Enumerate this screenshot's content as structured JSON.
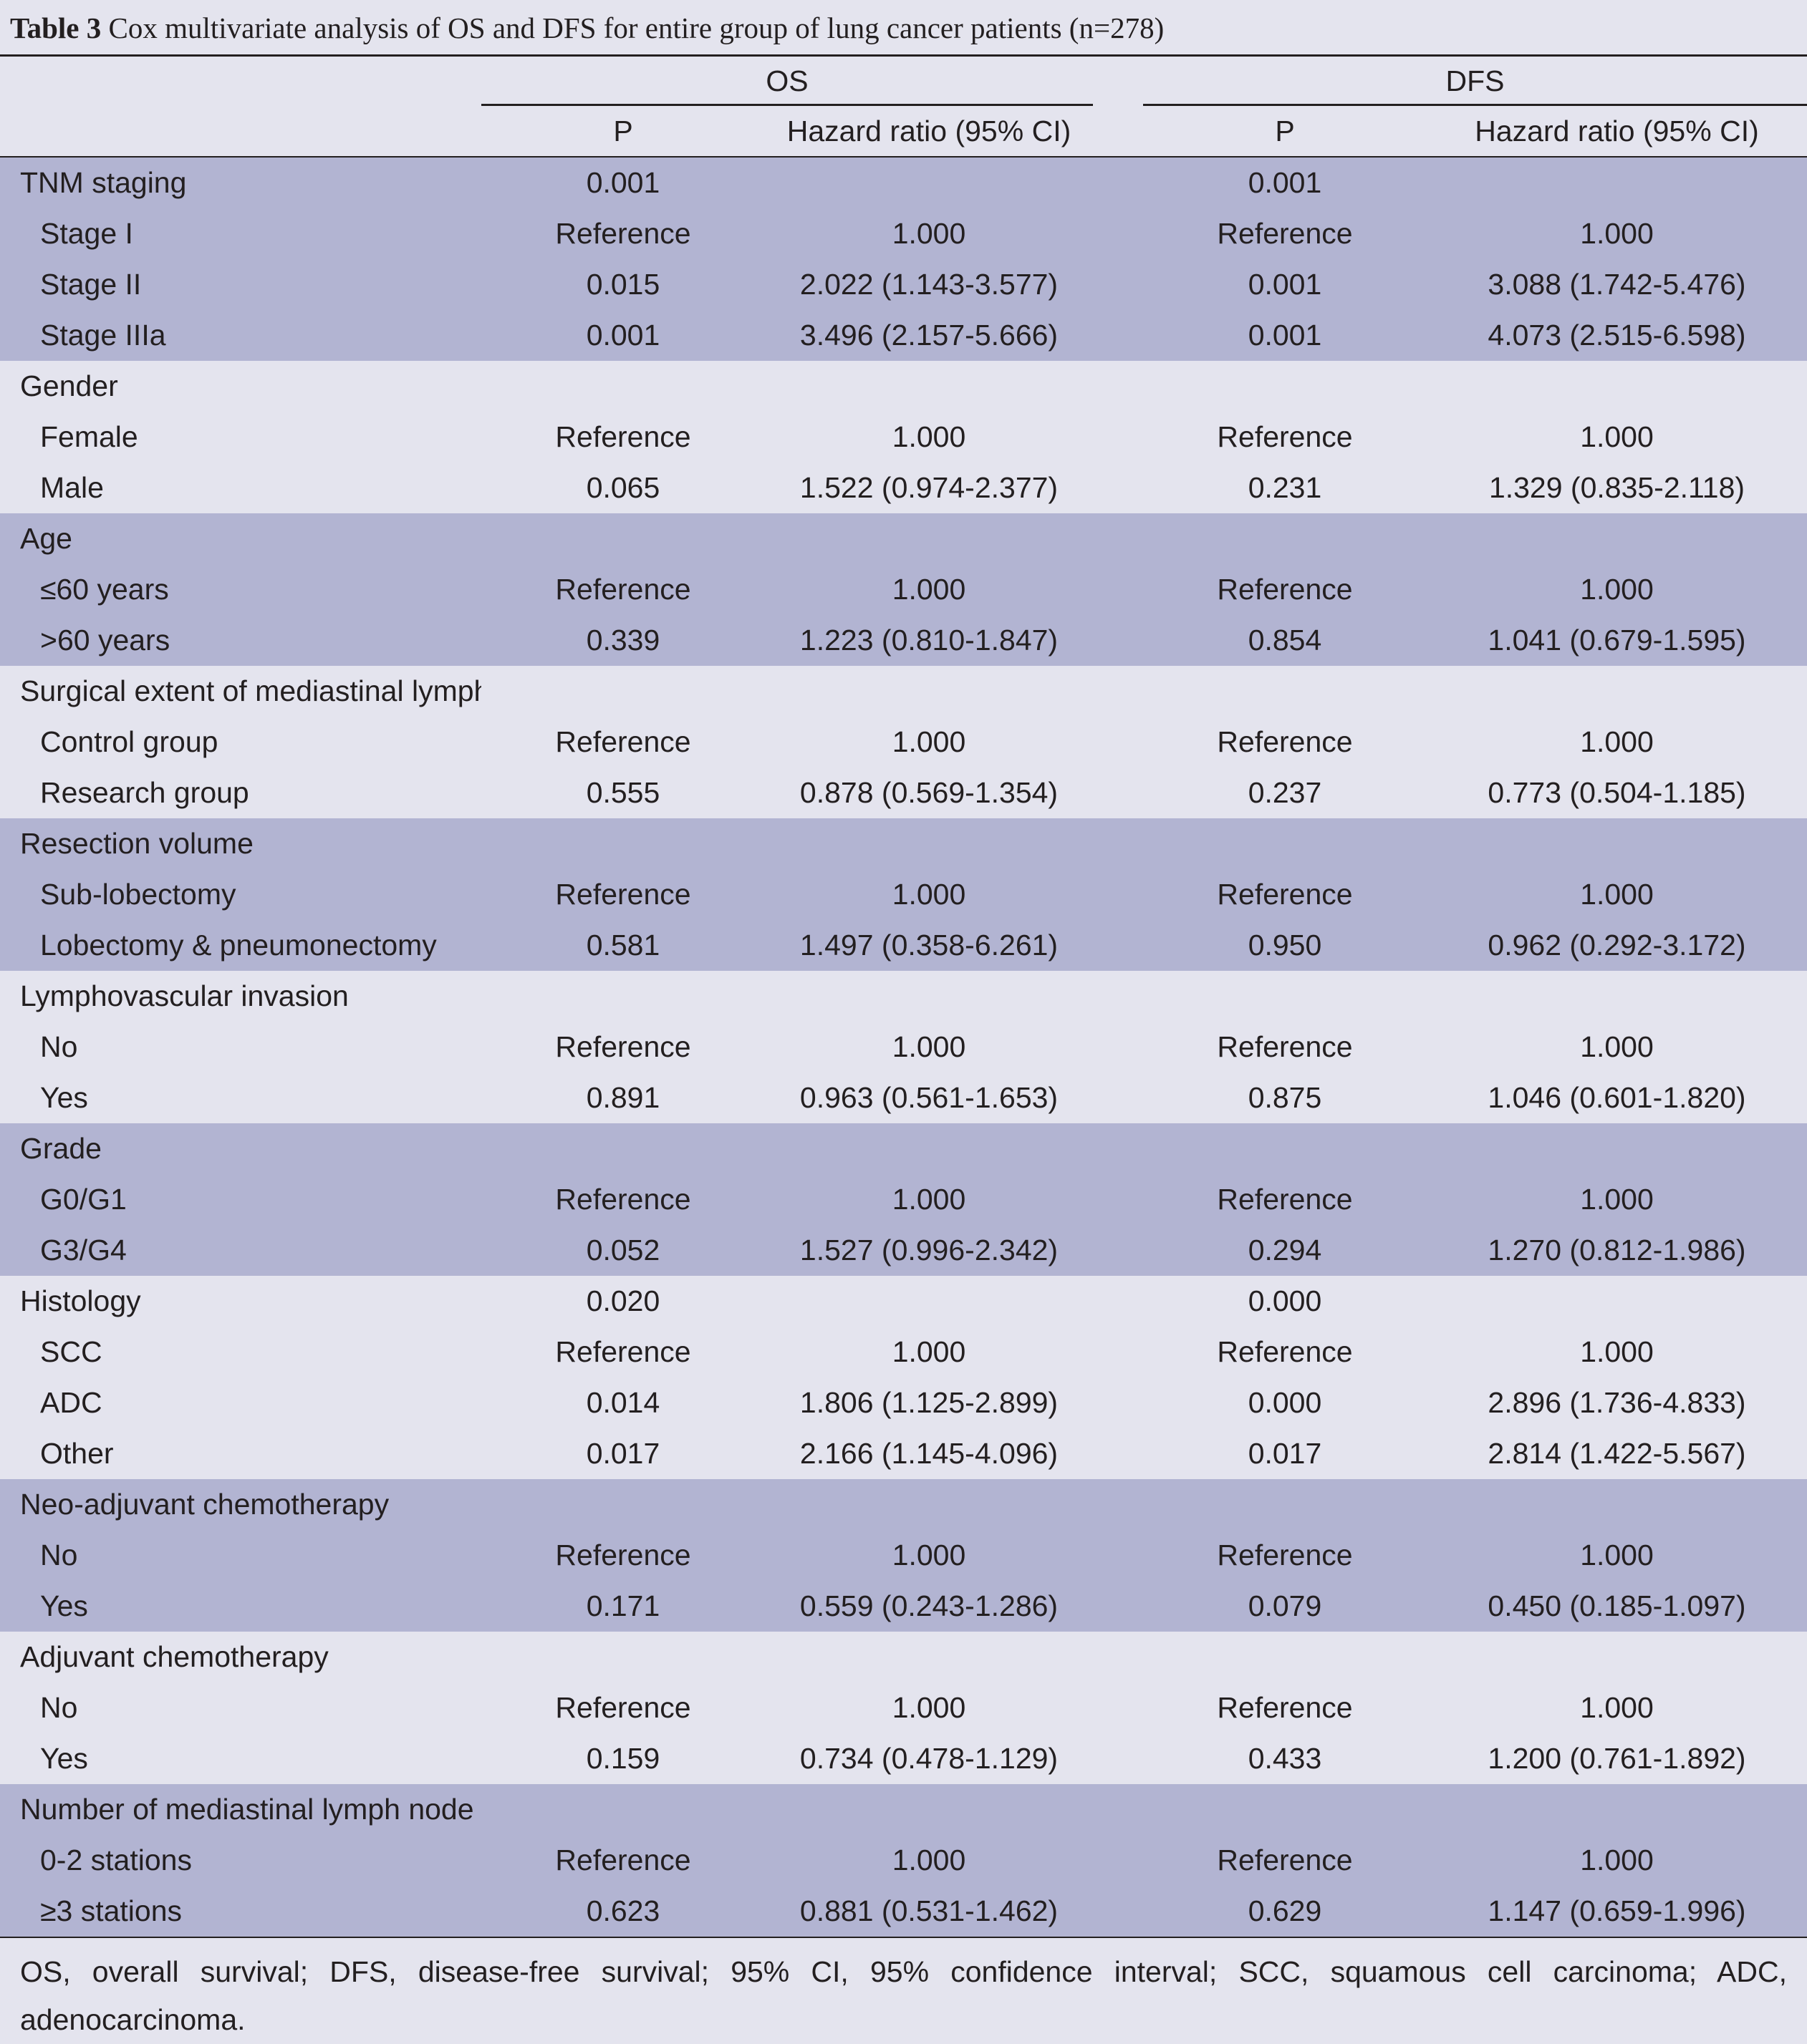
{
  "caption": {
    "label": "Table 3",
    "text": "Cox multivariate analysis of OS and DFS for entire group of lung cancer patients (n=278)"
  },
  "header": {
    "os": "OS",
    "dfs": "DFS",
    "p": "P",
    "hr": "Hazard ratio (95% CI)"
  },
  "rows": [
    {
      "label": "TNM staging",
      "sub": false,
      "os_p": "0.001",
      "os_hr": "",
      "dfs_p": "0.001",
      "dfs_hr": ""
    },
    {
      "label": "Stage I",
      "sub": true,
      "os_p": "Reference",
      "os_hr": "1.000",
      "dfs_p": "Reference",
      "dfs_hr": "1.000"
    },
    {
      "label": "Stage II",
      "sub": true,
      "os_p": "0.015",
      "os_hr": "2.022 (1.143-3.577)",
      "dfs_p": "0.001",
      "dfs_hr": "3.088 (1.742-5.476)"
    },
    {
      "label": "Stage IIIa",
      "sub": true,
      "os_p": "0.001",
      "os_hr": "3.496 (2.157-5.666)",
      "dfs_p": "0.001",
      "dfs_hr": "4.073 (2.515-6.598)"
    },
    {
      "label": "Gender",
      "sub": false,
      "os_p": "",
      "os_hr": "",
      "dfs_p": "",
      "dfs_hr": ""
    },
    {
      "label": "Female",
      "sub": true,
      "os_p": "Reference",
      "os_hr": "1.000",
      "dfs_p": "Reference",
      "dfs_hr": "1.000"
    },
    {
      "label": "Male",
      "sub": true,
      "os_p": "0.065",
      "os_hr": "1.522 (0.974-2.377)",
      "dfs_p": "0.231",
      "dfs_hr": "1.329 (0.835-2.118)"
    },
    {
      "label": "Age",
      "sub": false,
      "os_p": "",
      "os_hr": "",
      "dfs_p": "",
      "dfs_hr": ""
    },
    {
      "label": "≤60 years",
      "sub": true,
      "os_p": "Reference",
      "os_hr": "1.000",
      "dfs_p": "Reference",
      "dfs_hr": "1.000"
    },
    {
      "label": ">60 years",
      "sub": true,
      "os_p": "0.339",
      "os_hr": "1.223 (0.810-1.847)",
      "dfs_p": "0.854",
      "dfs_hr": "1.041 (0.679-1.595)"
    },
    {
      "label": "Surgical extent of mediastinal lymphadenectomy",
      "sub": false,
      "os_p": "",
      "os_hr": "",
      "dfs_p": "",
      "dfs_hr": ""
    },
    {
      "label": "Control group",
      "sub": true,
      "os_p": "Reference",
      "os_hr": "1.000",
      "dfs_p": "Reference",
      "dfs_hr": "1.000"
    },
    {
      "label": "Research group",
      "sub": true,
      "os_p": "0.555",
      "os_hr": "0.878 (0.569-1.354)",
      "dfs_p": "0.237",
      "dfs_hr": "0.773 (0.504-1.185)"
    },
    {
      "label": "Resection volume",
      "sub": false,
      "os_p": "",
      "os_hr": "",
      "dfs_p": "",
      "dfs_hr": ""
    },
    {
      "label": "Sub-lobectomy",
      "sub": true,
      "os_p": "Reference",
      "os_hr": "1.000",
      "dfs_p": "Reference",
      "dfs_hr": "1.000"
    },
    {
      "label": "Lobectomy & pneumonectomy",
      "sub": true,
      "os_p": "0.581",
      "os_hr": "1.497 (0.358-6.261)",
      "dfs_p": "0.950",
      "dfs_hr": "0.962 (0.292-3.172)"
    },
    {
      "label": "Lymphovascular invasion",
      "sub": false,
      "os_p": "",
      "os_hr": "",
      "dfs_p": "",
      "dfs_hr": ""
    },
    {
      "label": "No",
      "sub": true,
      "os_p": "Reference",
      "os_hr": "1.000",
      "dfs_p": "Reference",
      "dfs_hr": "1.000"
    },
    {
      "label": "Yes",
      "sub": true,
      "os_p": "0.891",
      "os_hr": "0.963 (0.561-1.653)",
      "dfs_p": "0.875",
      "dfs_hr": "1.046 (0.601-1.820)"
    },
    {
      "label": "Grade",
      "sub": false,
      "os_p": "",
      "os_hr": "",
      "dfs_p": "",
      "dfs_hr": ""
    },
    {
      "label": "G0/G1",
      "sub": true,
      "os_p": "Reference",
      "os_hr": "1.000",
      "dfs_p": "Reference",
      "dfs_hr": "1.000"
    },
    {
      "label": "G3/G4",
      "sub": true,
      "os_p": "0.052",
      "os_hr": "1.527 (0.996-2.342)",
      "dfs_p": "0.294",
      "dfs_hr": "1.270 (0.812-1.986)"
    },
    {
      "label": "Histology",
      "sub": false,
      "os_p": "0.020",
      "os_hr": "",
      "dfs_p": "0.000",
      "dfs_hr": ""
    },
    {
      "label": "SCC",
      "sub": true,
      "os_p": "Reference",
      "os_hr": "1.000",
      "dfs_p": "Reference",
      "dfs_hr": "1.000"
    },
    {
      "label": "ADC",
      "sub": true,
      "os_p": "0.014",
      "os_hr": "1.806 (1.125-2.899)",
      "dfs_p": "0.000",
      "dfs_hr": "2.896 (1.736-4.833)"
    },
    {
      "label": "Other",
      "sub": true,
      "os_p": "0.017",
      "os_hr": "2.166 (1.145-4.096)",
      "dfs_p": "0.017",
      "dfs_hr": "2.814 (1.422-5.567)"
    },
    {
      "label": "Neo-adjuvant chemotherapy",
      "sub": false,
      "os_p": "",
      "os_hr": "",
      "dfs_p": "",
      "dfs_hr": ""
    },
    {
      "label": "No",
      "sub": true,
      "os_p": "Reference",
      "os_hr": "1.000",
      "dfs_p": "Reference",
      "dfs_hr": "1.000"
    },
    {
      "label": "Yes",
      "sub": true,
      "os_p": "0.171",
      "os_hr": "0.559 (0.243-1.286)",
      "dfs_p": "0.079",
      "dfs_hr": "0.450 (0.185-1.097)"
    },
    {
      "label": "Adjuvant chemotherapy",
      "sub": false,
      "os_p": "",
      "os_hr": "",
      "dfs_p": "",
      "dfs_hr": ""
    },
    {
      "label": "No",
      "sub": true,
      "os_p": "Reference",
      "os_hr": "1.000",
      "dfs_p": "Reference",
      "dfs_hr": "1.000"
    },
    {
      "label": "Yes",
      "sub": true,
      "os_p": "0.159",
      "os_hr": "0.734 (0.478-1.129)",
      "dfs_p": "0.433",
      "dfs_hr": "1.200 (0.761-1.892)"
    },
    {
      "label": "Number of mediastinal lymph node stations investigated",
      "sub": false,
      "os_p": "",
      "os_hr": "",
      "dfs_p": "",
      "dfs_hr": ""
    },
    {
      "label": "0-2 stations",
      "sub": true,
      "os_p": "Reference",
      "os_hr": "1.000",
      "dfs_p": "Reference",
      "dfs_hr": "1.000"
    },
    {
      "label": "≥3 stations",
      "sub": true,
      "os_p": "0.623",
      "os_hr": "0.881 (0.531-1.462)",
      "dfs_p": "0.629",
      "dfs_hr": "1.147 (0.659-1.996)"
    }
  ],
  "group_shading": [
    true,
    false,
    true,
    false,
    true,
    false,
    true,
    false,
    true,
    false,
    true
  ],
  "group_sizes": [
    4,
    3,
    3,
    3,
    3,
    3,
    3,
    4,
    3,
    3,
    3
  ],
  "colors": {
    "shade": "#b2b4d2",
    "light": "#e4e4ee"
  },
  "footnote": "OS, overall survival; DFS, disease-free survival; 95% CI, 95% confidence interval; SCC, squamous cell carcinoma; ADC, adenocarcinoma."
}
